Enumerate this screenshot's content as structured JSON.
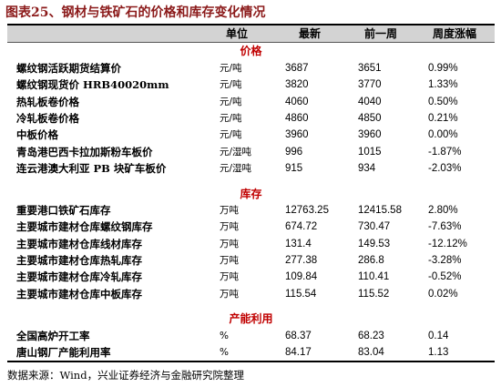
{
  "title": "图表25、钢材与铁矿石的价格和库存变化情况",
  "header": {
    "name": "",
    "unit": "单位",
    "latest": "最新",
    "prev": "前一周",
    "change": "周度涨幅"
  },
  "sections": [
    {
      "label": "价格",
      "rows": [
        {
          "name": "螺纹钢活跃期货结算价",
          "unit": "元/吨",
          "latest": "3687",
          "prev": "3651",
          "change": "0.99%"
        },
        {
          "name": "螺纹钢现货价 HRB40020mm",
          "unit": "元/吨",
          "latest": "3820",
          "prev": "3770",
          "change": "1.33%"
        },
        {
          "name": "热轧板卷价格",
          "unit": "元/吨",
          "latest": "4060",
          "prev": "4040",
          "change": "0.50%"
        },
        {
          "name": "冷轧板卷价格",
          "unit": "元/吨",
          "latest": "4860",
          "prev": "4850",
          "change": "0.21%"
        },
        {
          "name": "中板价格",
          "unit": "元/吨",
          "latest": "3960",
          "prev": "3960",
          "change": "0.00%"
        },
        {
          "name": "青岛港巴西卡拉加斯粉车板价",
          "unit": "元/湿吨",
          "latest": "996",
          "prev": "1015",
          "change": "-1.87%"
        },
        {
          "name": "连云港澳大利亚 PB 块矿车板价",
          "unit": "元/湿吨",
          "latest": "915",
          "prev": "934",
          "change": "-2.03%"
        }
      ]
    },
    {
      "label": "库存",
      "rows": [
        {
          "name": "重要港口铁矿石库存",
          "unit": "万吨",
          "latest": "12763.25",
          "prev": "12415.58",
          "change": "2.80%"
        },
        {
          "name": "主要城市建材仓库螺纹钢库存",
          "unit": "万吨",
          "latest": "674.72",
          "prev": "730.47",
          "change": "-7.63%"
        },
        {
          "name": "主要城市建材仓库线材库存",
          "unit": "万吨",
          "latest": "131.4",
          "prev": "149.53",
          "change": "-12.12%"
        },
        {
          "name": "主要城市建材仓库热轧库存",
          "unit": "万吨",
          "latest": "277.38",
          "prev": "286.8",
          "change": "-3.28%"
        },
        {
          "name": "主要城市建材仓库冷轧库存",
          "unit": "万吨",
          "latest": "109.84",
          "prev": "110.41",
          "change": "-0.52%"
        },
        {
          "name": "主要城市建材仓库中板库存",
          "unit": "万吨",
          "latest": "115.54",
          "prev": "115.52",
          "change": "0.02%"
        }
      ]
    },
    {
      "label": "产能利用",
      "rows": [
        {
          "name": "全国高炉开工率",
          "unit": "%",
          "latest": "68.37",
          "prev": "68.23",
          "change": "0.14"
        },
        {
          "name": "唐山钢厂产能利用率",
          "unit": "%",
          "latest": "84.17",
          "prev": "83.04",
          "change": "1.13"
        }
      ]
    }
  ],
  "footer": "数据来源：Wind，兴业证券经济与金融研究院整理"
}
